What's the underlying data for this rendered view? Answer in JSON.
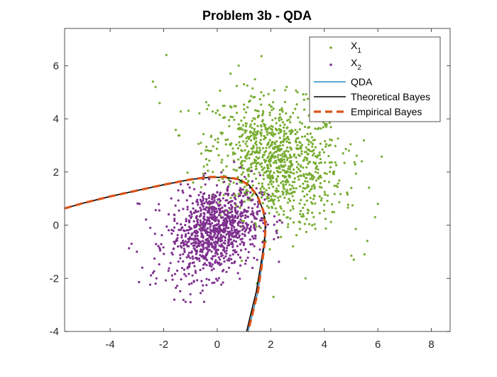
{
  "chart_data": {
    "type": "scatter",
    "title": "Problem 3b - QDA",
    "xlabel": "",
    "ylabel": "",
    "xlim": [
      -5.7,
      8.7
    ],
    "ylim": [
      -4,
      7.4
    ],
    "x_ticks": [
      -4,
      -2,
      0,
      2,
      4,
      6,
      8
    ],
    "y_ticks": [
      -4,
      -2,
      0,
      2,
      4,
      6
    ],
    "grid": false,
    "legend_position": "top-right",
    "legend": [
      {
        "label": "X",
        "sub": "1",
        "kind": "marker",
        "color": "#77ac30"
      },
      {
        "label": "X",
        "sub": "2",
        "kind": "marker",
        "color": "#7e2f8e"
      },
      {
        "label": "QDA",
        "kind": "line",
        "color": "#0072bd",
        "style": "solid"
      },
      {
        "label": "Theoretical Bayes",
        "kind": "line",
        "color": "#000000",
        "style": "solid"
      },
      {
        "label": "Empirical Bayes",
        "kind": "line",
        "color": "#d95319",
        "style": "dashed"
      }
    ],
    "series": [
      {
        "name": "X1",
        "kind": "scatter",
        "color": "#77ac30",
        "distribution": {
          "mean": [
            2.2,
            2.4
          ],
          "std": [
            1.25,
            1.2
          ],
          "rho": -0.2,
          "n": 1000
        },
        "points": [
          [
            -1.9,
            6.4
          ],
          [
            0.8,
            6.0
          ],
          [
            -2.4,
            5.4
          ],
          [
            -2.3,
            5.2
          ],
          [
            1.0,
            5.3
          ],
          [
            4.7,
            2.7
          ],
          [
            5.4,
            2.4
          ],
          [
            6.0,
            0.8
          ],
          [
            5.9,
            0.3
          ],
          [
            5.5,
            -1.1
          ],
          [
            5.1,
            -1.3
          ],
          [
            3.3,
            -2.0
          ],
          [
            2.1,
            -2.7
          ],
          [
            0.5,
            5.7
          ]
        ]
      },
      {
        "name": "X2",
        "kind": "scatter",
        "color": "#7e2f8e",
        "distribution": {
          "mean": [
            -0.1,
            -0.2
          ],
          "std": [
            0.85,
            0.85
          ],
          "rho": 0.25,
          "n": 1000
        },
        "points": [
          [
            -3.0,
            -1.0
          ],
          [
            -2.8,
            -1.6
          ],
          [
            -2.5,
            -0.1
          ],
          [
            -2.4,
            -1.8
          ],
          [
            -2.3,
            -2.2
          ],
          [
            -1.6,
            -2.8
          ],
          [
            -1.0,
            -2.6
          ],
          [
            -2.9,
            0.8
          ],
          [
            -3.2,
            -0.7
          ]
        ]
      },
      {
        "name": "QDA",
        "kind": "line",
        "color": "#0072bd",
        "points": [
          [
            -5.7,
            0.63
          ],
          [
            -5.0,
            0.83
          ],
          [
            -4.0,
            1.08
          ],
          [
            -3.0,
            1.3
          ],
          [
            -2.0,
            1.52
          ],
          [
            -1.0,
            1.72
          ],
          [
            -0.3,
            1.8
          ],
          [
            0.3,
            1.8
          ],
          [
            0.8,
            1.72
          ],
          [
            1.2,
            1.5
          ],
          [
            1.5,
            1.1
          ],
          [
            1.72,
            0.55
          ],
          [
            1.8,
            0.0
          ],
          [
            1.78,
            -0.6
          ],
          [
            1.68,
            -1.4
          ],
          [
            1.52,
            -2.5
          ],
          [
            1.3,
            -3.4
          ],
          [
            1.15,
            -4.0
          ]
        ]
      },
      {
        "name": "Theoretical Bayes",
        "kind": "line",
        "color": "#000000",
        "points": [
          [
            -5.7,
            0.63
          ],
          [
            -5.0,
            0.83
          ],
          [
            -4.0,
            1.08
          ],
          [
            -3.0,
            1.3
          ],
          [
            -2.0,
            1.52
          ],
          [
            -1.0,
            1.72
          ],
          [
            -0.3,
            1.8
          ],
          [
            0.3,
            1.8
          ],
          [
            0.8,
            1.72
          ],
          [
            1.2,
            1.5
          ],
          [
            1.5,
            1.1
          ],
          [
            1.72,
            0.55
          ],
          [
            1.8,
            0.0
          ],
          [
            1.76,
            -0.6
          ],
          [
            1.64,
            -1.4
          ],
          [
            1.46,
            -2.5
          ],
          [
            1.24,
            -3.4
          ],
          [
            1.1,
            -4.0
          ]
        ]
      },
      {
        "name": "Empirical Bayes",
        "kind": "line",
        "color": "#d95319",
        "points": [
          [
            -5.7,
            0.63
          ],
          [
            -5.0,
            0.83
          ],
          [
            -4.0,
            1.08
          ],
          [
            -3.0,
            1.3
          ],
          [
            -2.0,
            1.52
          ],
          [
            -1.0,
            1.72
          ],
          [
            -0.3,
            1.81
          ],
          [
            0.3,
            1.81
          ],
          [
            0.8,
            1.73
          ],
          [
            1.2,
            1.5
          ],
          [
            1.5,
            1.1
          ],
          [
            1.72,
            0.55
          ],
          [
            1.8,
            0.0
          ],
          [
            1.78,
            -0.6
          ],
          [
            1.68,
            -1.4
          ],
          [
            1.52,
            -2.5
          ],
          [
            1.3,
            -3.4
          ],
          [
            1.15,
            -4.0
          ]
        ]
      }
    ]
  }
}
